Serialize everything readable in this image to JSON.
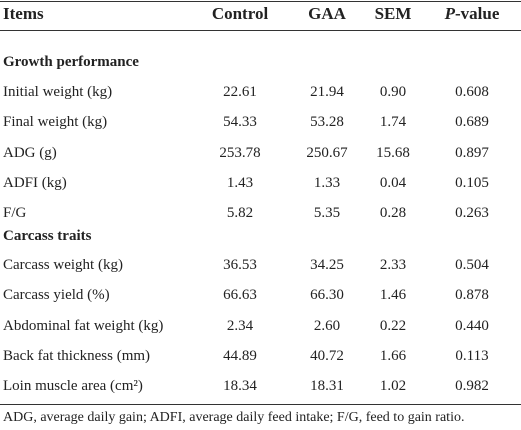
{
  "table": {
    "header": [
      "Items",
      "Control",
      "GAA",
      "SEM",
      "P-value"
    ],
    "sections": [
      {
        "title": "Growth performance",
        "rows": [
          [
            "Initial weight (kg)",
            "22.61",
            "21.94",
            "0.90",
            "0.608"
          ],
          [
            "Final weight (kg)",
            "54.33",
            "53.28",
            "1.74",
            "0.689"
          ],
          [
            "ADG (g)",
            "253.78",
            "250.67",
            "15.68",
            "0.897"
          ],
          [
            "ADFI (kg)",
            "1.43",
            "1.33",
            "0.04",
            "0.105"
          ],
          [
            "F/G",
            "5.82",
            "5.35",
            "0.28",
            "0.263"
          ]
        ]
      },
      {
        "title": "Carcass traits",
        "rows": [
          [
            "Carcass weight (kg)",
            "36.53",
            "34.25",
            "2.33",
            "0.504"
          ],
          [
            "Carcass yield (%)",
            "66.63",
            "66.30",
            "1.46",
            "0.878"
          ],
          [
            "Abdominal fat weight (kg)",
            "2.34",
            "2.60",
            "0.22",
            "0.440"
          ],
          [
            "Back fat thickness (mm)",
            "44.89",
            "40.72",
            "1.66",
            "0.113"
          ],
          [
            "Loin muscle area (cm²)",
            "18.34",
            "18.31",
            "1.02",
            "0.982"
          ]
        ]
      }
    ]
  },
  "footnote": "ADG, average daily gain; ADFI, average daily feed intake; F/G, feed to gain ratio."
}
